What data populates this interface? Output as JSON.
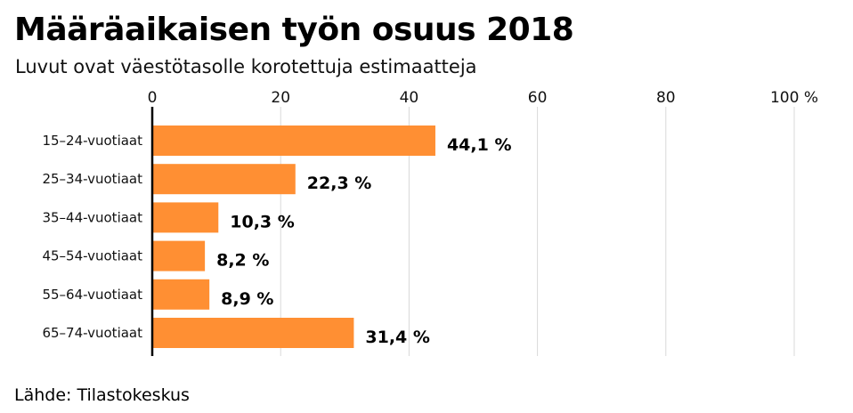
{
  "chart_data": {
    "type": "bar",
    "orientation": "horizontal",
    "title": "Määräaikaisen työn osuus 2018",
    "subtitle": "Luvut ovat väestötasolle korotettuja estimaatteja",
    "source": "Lähde: Tilastokeskus",
    "categories": [
      "15–24-vuotiaat",
      "25–34-vuotiaat",
      "35–44-vuotiaat",
      "45–54-vuotiaat",
      "55–64-vuotiaat",
      "65–74-vuotiaat"
    ],
    "values": [
      44.1,
      22.3,
      10.3,
      8.2,
      8.9,
      31.4
    ],
    "value_labels": [
      "44,1 %",
      "22,3 %",
      "10,3 %",
      "8,2 %",
      "8,9 %",
      "31,4 %"
    ],
    "xlim": [
      0,
      100
    ],
    "ticks": [
      0,
      20,
      40,
      60,
      80,
      100
    ],
    "tick_labels": [
      "0",
      "20",
      "40",
      "60",
      "80",
      "100 %"
    ],
    "axis_position": "top",
    "grid": true,
    "legend": "none",
    "bar_color": "#ff8f33",
    "grid_color": "#d9d9d9",
    "axis_color": "#000000"
  }
}
